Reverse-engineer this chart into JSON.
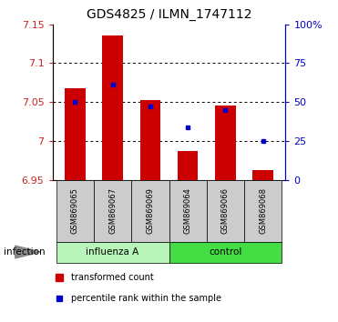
{
  "title": "GDS4825 / ILMN_1747112",
  "samples": [
    "GSM869065",
    "GSM869067",
    "GSM869069",
    "GSM869064",
    "GSM869066",
    "GSM869068"
  ],
  "red_values": [
    7.068,
    7.135,
    7.053,
    6.987,
    7.046,
    6.963
  ],
  "blue_values": [
    7.05,
    7.073,
    7.045,
    7.018,
    7.04,
    7.0
  ],
  "y_min": 6.95,
  "y_max": 7.15,
  "y_ticks": [
    6.95,
    7.0,
    7.05,
    7.1,
    7.15
  ],
  "y2_labels": [
    "0",
    "25",
    "50",
    "75",
    "100%"
  ],
  "bar_color": "#cc0000",
  "marker_color": "#0000cc",
  "bar_bottom": 6.95,
  "infection_label": "infection",
  "legend_red": "transformed count",
  "legend_blue": "percentile rank within the sample",
  "title_fontsize": 10,
  "tick_fontsize": 8,
  "group_influenza_color": "#b8f5b8",
  "group_control_color": "#44dd44",
  "sample_box_color": "#cccccc",
  "gridline_color": "#444444",
  "bar_width": 0.55
}
